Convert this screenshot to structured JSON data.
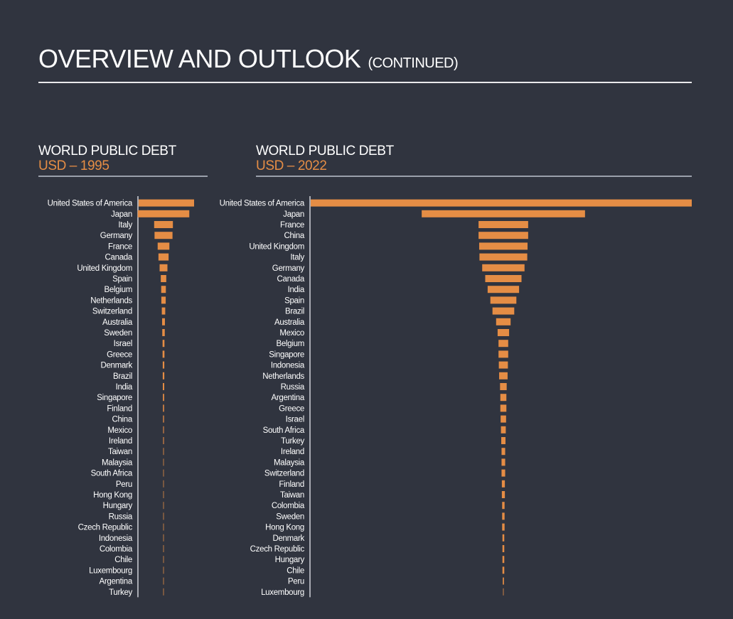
{
  "page": {
    "title": "OVERVIEW AND OUTLOOK",
    "subtitle": "(CONTINUED)"
  },
  "colors": {
    "background": "#30343f",
    "bar": "#e58d45",
    "axis": "#cfd2d8",
    "text": "#ffffff"
  },
  "chart_data": [
    {
      "type": "bar",
      "orientation": "horizontal",
      "title": "WORLD PUBLIC DEBT",
      "subtitle": "USD – 1995",
      "categories": [
        "United States of America",
        "Japan",
        "Italy",
        "Germany",
        "France",
        "Canada",
        "United Kingdom",
        "Spain",
        "Belgium",
        "Netherlands",
        "Switzerland",
        "Australia",
        "Sweden",
        "Israel",
        "Greece",
        "Denmark",
        "Brazil",
        "India",
        "Singapore",
        "Finland",
        "China",
        "Mexico",
        "Ireland",
        "Taiwan",
        "Malaysia",
        "South Africa",
        "Peru",
        "Hong Kong",
        "Hungary",
        "Russia",
        "Czech Republic",
        "Indonesia",
        "Colombia",
        "Chile",
        "Luxembourg",
        "Argentina",
        "Turkey"
      ],
      "values": [
        3.55,
        3.3,
        1.2,
        1.15,
        0.75,
        0.65,
        0.5,
        0.35,
        0.3,
        0.28,
        0.22,
        0.18,
        0.16,
        0.12,
        0.12,
        0.1,
        0.1,
        0.09,
        0.08,
        0.07,
        0.06,
        0.05,
        0.05,
        0.04,
        0.03,
        0.03,
        0.02,
        0.02,
        0.02,
        0.02,
        0.02,
        0.02,
        0.02,
        0.01,
        0.01,
        0.01,
        0.01
      ],
      "layout": "centered"
    },
    {
      "type": "bar",
      "orientation": "horizontal",
      "title": "WORLD PUBLIC DEBT",
      "subtitle": "USD – 2022",
      "categories": [
        "United States of America",
        "Japan",
        "France",
        "China",
        "United Kingdom",
        "Italy",
        "Germany",
        "Canada",
        "India",
        "Spain",
        "Brazil",
        "Australia",
        "Mexico",
        "Belgium",
        "Singapore",
        "Indonesia",
        "Netherlands",
        "Russia",
        "Argentina",
        "Greece",
        "Israel",
        "South Africa",
        "Turkey",
        "Ireland",
        "Malaysia",
        "Switzerland",
        "Finland",
        "Taiwan",
        "Colombia",
        "Sweden",
        "Hong Kong",
        "Denmark",
        "Czech Republic",
        "Hungary",
        "Chile",
        "Peru",
        "Luxembourg"
      ],
      "values": [
        31.5,
        13.5,
        4.1,
        4.1,
        4.0,
        3.95,
        3.5,
        3.0,
        2.6,
        2.15,
        1.8,
        1.2,
        0.95,
        0.8,
        0.8,
        0.75,
        0.7,
        0.55,
        0.5,
        0.5,
        0.45,
        0.4,
        0.35,
        0.3,
        0.3,
        0.3,
        0.25,
        0.25,
        0.2,
        0.2,
        0.2,
        0.15,
        0.15,
        0.15,
        0.15,
        0.1,
        0.05
      ],
      "layout": "centered"
    }
  ]
}
